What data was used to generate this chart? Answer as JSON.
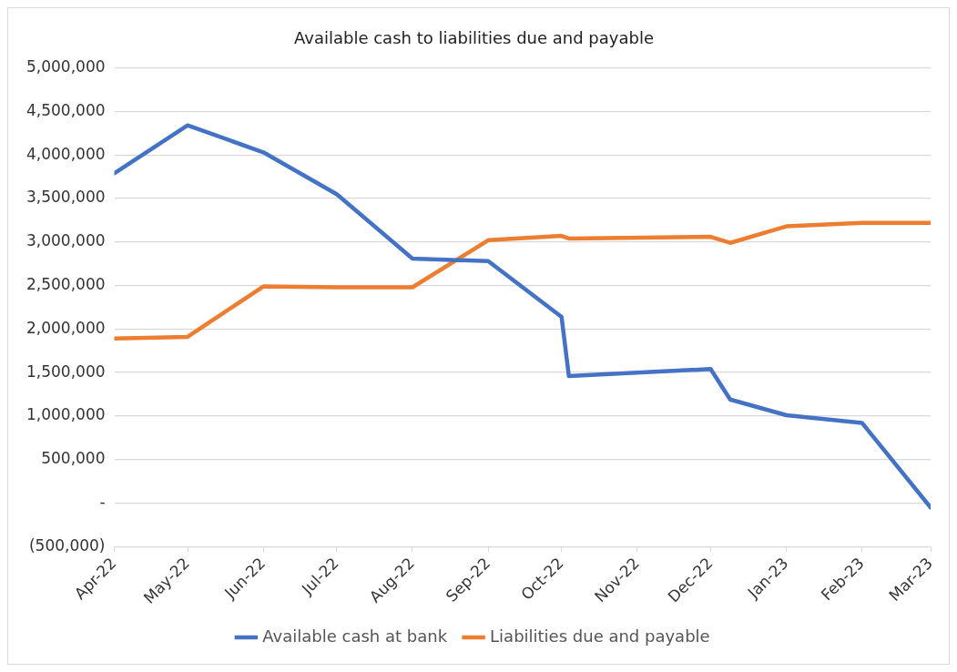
{
  "chart_data": {
    "type": "line",
    "title": "Available cash to liabilities due and payable",
    "series": [
      {
        "name": "Available cash at bank",
        "color": "#4472c4",
        "x": [
          "2022-04-01",
          "2022-05-01",
          "2022-06-01",
          "2022-07-01",
          "2022-08-01",
          "2022-09-01",
          "2022-10-01",
          "2022-10-04",
          "2022-12-01",
          "2022-12-09",
          "2023-01-01",
          "2023-02-01",
          "2023-03-01"
        ],
        "values": [
          3790000,
          4340000,
          4030000,
          3550000,
          2810000,
          2780000,
          2140000,
          1460000,
          1540000,
          1190000,
          1010000,
          920000,
          -50000
        ]
      },
      {
        "name": "Liabilities due and payable",
        "color": "#ed7d31",
        "x": [
          "2022-04-01",
          "2022-05-01",
          "2022-06-01",
          "2022-07-01",
          "2022-08-01",
          "2022-09-01",
          "2022-10-01",
          "2022-10-04",
          "2022-12-01",
          "2022-12-09",
          "2023-01-01",
          "2023-02-01",
          "2023-03-01"
        ],
        "values": [
          1890000,
          1910000,
          2490000,
          2480000,
          2480000,
          3020000,
          3070000,
          3040000,
          3060000,
          2990000,
          3180000,
          3220000,
          3220000
        ]
      }
    ],
    "xlim": [
      "2022-04-01",
      "2023-03-01"
    ],
    "xticks": [
      {
        "value": "2022-04-01",
        "label": "Apr-22"
      },
      {
        "value": "2022-05-01",
        "label": "May-22"
      },
      {
        "value": "2022-06-01",
        "label": "Jun-22"
      },
      {
        "value": "2022-07-01",
        "label": "Jul-22"
      },
      {
        "value": "2022-08-01",
        "label": "Aug-22"
      },
      {
        "value": "2022-09-01",
        "label": "Sep-22"
      },
      {
        "value": "2022-10-01",
        "label": "Oct-22"
      },
      {
        "value": "2022-11-01",
        "label": "Nov-22"
      },
      {
        "value": "2022-12-01",
        "label": "Dec-22"
      },
      {
        "value": "2023-01-01",
        "label": "Jan-23"
      },
      {
        "value": "2023-02-01",
        "label": "Feb-23"
      },
      {
        "value": "2023-03-01",
        "label": "Mar-23"
      }
    ],
    "ylim": [
      -500000,
      5000000
    ],
    "yticks": [
      {
        "value": -500000,
        "label": "(500,000)"
      },
      {
        "value": 0,
        "label": "-"
      },
      {
        "value": 500000,
        "label": "500,000"
      },
      {
        "value": 1000000,
        "label": "1,000,000"
      },
      {
        "value": 1500000,
        "label": "1,500,000"
      },
      {
        "value": 2000000,
        "label": "2,000,000"
      },
      {
        "value": 2500000,
        "label": "2,500,000"
      },
      {
        "value": 3000000,
        "label": "3,000,000"
      },
      {
        "value": 3500000,
        "label": "3,500,000"
      },
      {
        "value": 4000000,
        "label": "4,000,000"
      },
      {
        "value": 4500000,
        "label": "4,500,000"
      },
      {
        "value": 5000000,
        "label": "5,000,000"
      }
    ],
    "grid": "y",
    "legend": "bottom",
    "marker": "none",
    "line_style": "solid"
  }
}
